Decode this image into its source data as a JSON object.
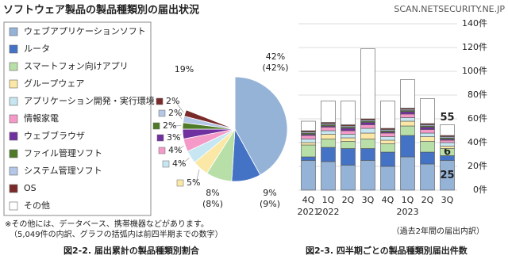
{
  "header": {
    "title": "ソフトウェア製品の製品種類別の届出状況",
    "watermark": "SCAN.NETSECURITY.NE.JP"
  },
  "chart_data": [
    {
      "type": "pie",
      "caption": "図2-2. 届出累計の製品種類別割合",
      "notes": [
        "※その他には、データベース、携帯機器などがあります。",
        "（5,049件の内訳、グラフの括弧内は前四半期までの数字）"
      ],
      "categories": [
        "ウェブアプリケーションソフト",
        "ルータ",
        "スマートフォン向けアプリ",
        "グループウェア",
        "アプリケーション開発・実行環境",
        "情報家電",
        "ウェブブラウザ",
        "ファイル管理ソフト",
        "システム管理ソフト",
        "OS",
        "その他"
      ],
      "values": [
        42,
        9,
        8,
        5,
        4,
        4,
        3,
        2,
        2,
        2,
        19
      ],
      "value_labels": [
        "42%",
        "9%",
        "8%",
        "5%",
        "4%",
        "4%",
        "3%",
        "2%",
        "2%",
        "2%",
        "19%"
      ],
      "previous_value_labels": [
        "(42%)",
        "(9%)",
        "(8%)",
        null,
        null,
        null,
        null,
        null,
        null,
        null,
        null
      ],
      "colors": [
        "#95b3d7",
        "#4472c4",
        "#b9dfa8",
        "#fbe8a6",
        "#c6e7f2",
        "#f59ac8",
        "#7030a0",
        "#4f7a28",
        "#b4c7e7",
        "#7b2a2a",
        "#ffffff"
      ]
    },
    {
      "type": "stacked_bar",
      "caption": "図2-3. 四半期ごとの製品種類別届出件数",
      "note": "（過去2年間の届出内訳）",
      "categories": [
        "4Q",
        "1Q",
        "2Q",
        "3Q",
        "4Q",
        "1Q",
        "2Q",
        "3Q"
      ],
      "category_years": [
        "2021",
        "2022",
        null,
        null,
        null,
        "2023",
        null,
        null
      ],
      "ylim": [
        0,
        140
      ],
      "yticks": [
        {
          "value": 0,
          "label": "0件"
        },
        {
          "value": 20,
          "label": "20件"
        },
        {
          "value": 40,
          "label": "40件"
        },
        {
          "value": 60,
          "label": "60件"
        },
        {
          "value": 80,
          "label": "80件"
        },
        {
          "value": 100,
          "label": "100件"
        },
        {
          "value": 120,
          "label": "120件"
        },
        {
          "value": 140,
          "label": "140件"
        }
      ],
      "grid": true,
      "series": [
        {
          "color": "#95b3d7",
          "values": [
            25,
            24,
            21,
            25,
            20,
            28,
            22,
            25
          ],
          "value_labels": [
            null,
            null,
            null,
            null,
            null,
            null,
            null,
            "25"
          ]
        },
        {
          "color": "#4472c4",
          "values": [
            3,
            12,
            14,
            10,
            12,
            18,
            10,
            4
          ]
        },
        {
          "color": "#b9dfa8",
          "values": [
            10,
            7,
            6,
            8,
            7,
            8,
            9,
            6
          ],
          "value_labels": [
            null,
            null,
            null,
            null,
            null,
            null,
            null,
            "6"
          ]
        },
        {
          "color": "#fbe8a6",
          "values": [
            2,
            4,
            3,
            5,
            3,
            4,
            4,
            2
          ]
        },
        {
          "color": "#c6e7f2",
          "values": [
            3,
            3,
            3,
            4,
            3,
            3,
            3,
            3
          ]
        },
        {
          "color": "#f59ac8",
          "values": [
            3,
            3,
            3,
            3,
            3,
            3,
            3,
            2
          ]
        },
        {
          "color": "#7030a0",
          "values": [
            1,
            1,
            2,
            2,
            1,
            2,
            2,
            1
          ]
        },
        {
          "color": "#4f7a28",
          "values": [
            1,
            1,
            1,
            1,
            1,
            1,
            1,
            1
          ]
        },
        {
          "color": "#b4c7e7",
          "values": [
            1,
            1,
            1,
            1,
            1,
            1,
            1,
            1
          ]
        },
        {
          "color": "#7b2a2a",
          "values": [
            1,
            1,
            1,
            1,
            1,
            1,
            1,
            1
          ]
        },
        {
          "color": "#ffffff",
          "values": [
            8,
            18,
            20,
            59,
            23,
            24,
            21,
            9
          ]
        }
      ],
      "totals": [
        null,
        null,
        null,
        null,
        null,
        null,
        null,
        55
      ]
    }
  ]
}
